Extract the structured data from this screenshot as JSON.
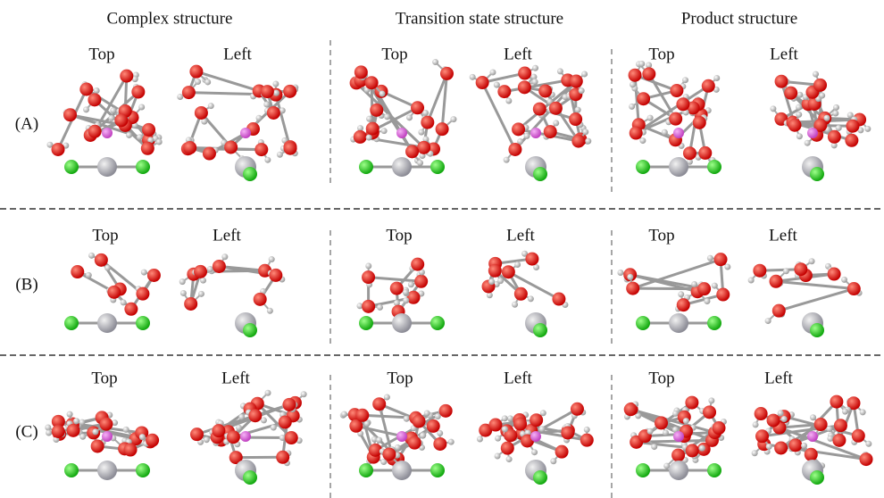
{
  "columns": [
    "Complex structure",
    "Transition state structure",
    "Product structure"
  ],
  "rows": [
    {
      "label": "(A)",
      "views": [
        "Top",
        "Left",
        "Top",
        "Left",
        "Top",
        "Left"
      ]
    },
    {
      "label": "(B)",
      "views": [
        "Top",
        "Left",
        "Top",
        "Left",
        "Top",
        "Left"
      ]
    },
    {
      "label": "(C)",
      "views": [
        "Top",
        "Left",
        "Top",
        "Left",
        "Top",
        "Left"
      ]
    }
  ]
}
